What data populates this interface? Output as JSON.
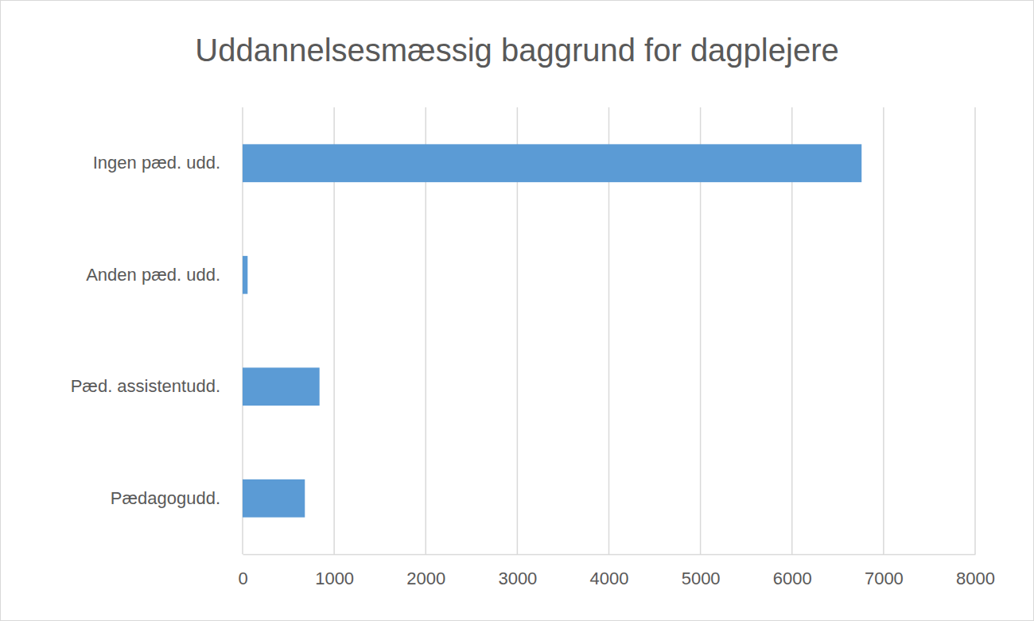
{
  "chart_data": {
    "type": "bar",
    "title": "Uddannelsesmæssig baggrund for dagplejere",
    "orientation": "horizontal",
    "categories": [
      "Ingen pæd. udd.",
      "Anden pæd. udd.",
      "Pæd. assistentudd.",
      "Pædagogudd."
    ],
    "values": [
      6760,
      55,
      840,
      680
    ],
    "color": "#5b9bd5",
    "xlim": [
      0,
      8000
    ],
    "xticks": [
      0,
      1000,
      2000,
      3000,
      4000,
      5000,
      6000,
      7000,
      8000
    ],
    "grid": true
  }
}
